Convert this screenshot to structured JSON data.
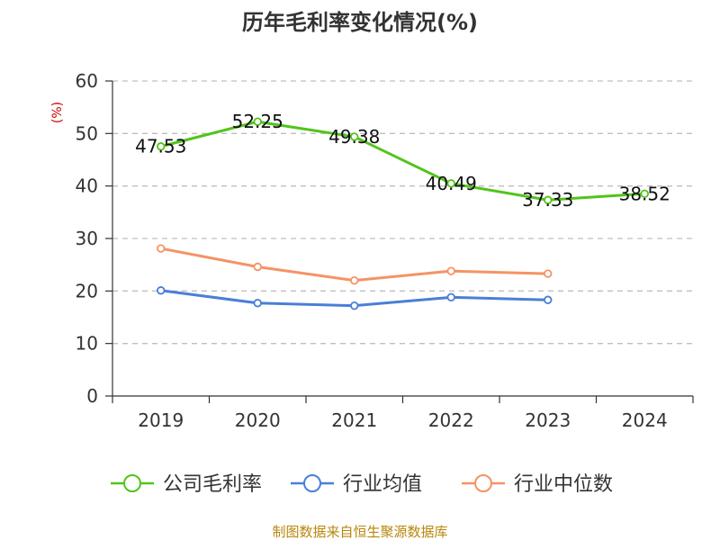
{
  "chart_data": {
    "type": "line",
    "title": "历年毛利率变化情况(%)",
    "ylabel": "(%)",
    "xlabel": "",
    "categories": [
      "2019",
      "2020",
      "2021",
      "2022",
      "2023",
      "2024"
    ],
    "ylim": [
      0,
      60
    ],
    "yticks": [
      0,
      10,
      20,
      30,
      40,
      50,
      60
    ],
    "grid": true,
    "legend_position": "bottom",
    "series": [
      {
        "name": "公司毛利率",
        "color": "#52c41a",
        "values": [
          47.53,
          52.25,
          49.38,
          40.49,
          37.33,
          38.52
        ],
        "labels": [
          "47.53",
          "52.25",
          "49.38",
          "40.49",
          "37.33",
          "38.52"
        ]
      },
      {
        "name": "行业均值",
        "color": "#4a7fd8",
        "values": [
          20.1,
          17.7,
          17.2,
          18.8,
          18.3,
          null
        ]
      },
      {
        "name": "行业中位数",
        "color": "#f59364",
        "values": [
          28.1,
          24.6,
          22.0,
          23.8,
          23.3,
          null
        ]
      }
    ]
  },
  "footer": {
    "source": "制图数据来自恒生聚源数据库"
  }
}
